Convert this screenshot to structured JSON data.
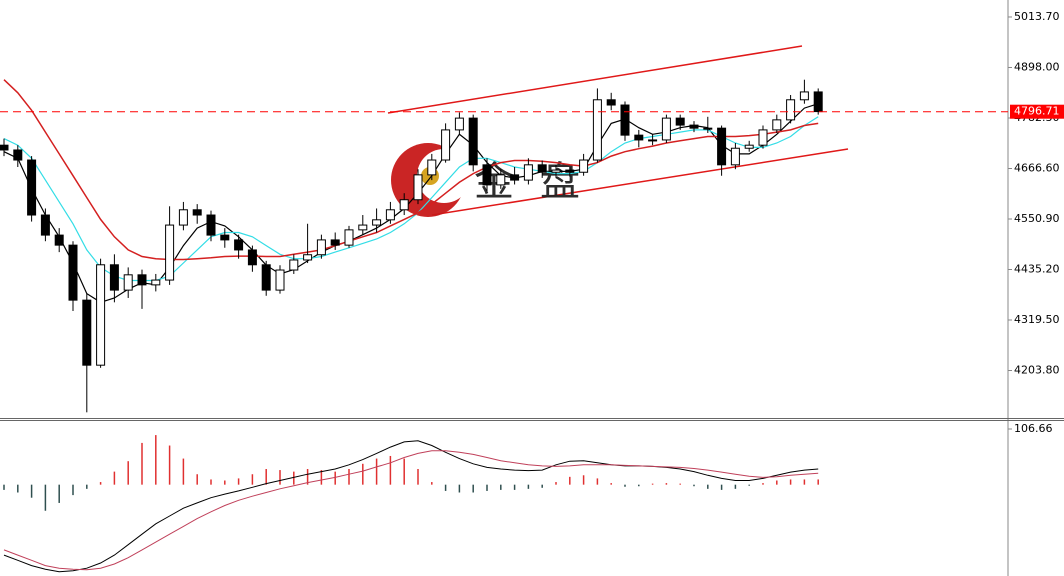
{
  "chart_data": {
    "type": "candlestick",
    "watermark": "金盘",
    "open": [
      4720,
      4709,
      4686,
      4560,
      4514,
      4491,
      4365,
      4216,
      4446,
      4388,
      4423,
      4400,
      4411,
      4537,
      4572,
      4560,
      4514,
      4503,
      4480,
      4446,
      4388,
      4434,
      4457,
      4469,
      4503,
      4491,
      4526,
      4537,
      4549,
      4572,
      4595,
      4652,
      4686,
      4755,
      4782,
      4675,
      4629,
      4652,
      4640,
      4675,
      4658,
      4663,
      4658,
      4686,
      4824,
      4812,
      4743,
      4732,
      4732,
      4782,
      4766,
      4759,
      4759,
      4675,
      4713,
      4720,
      4755,
      4778,
      4824,
      4842
    ],
    "high": [
      4735,
      4720,
      4695,
      4575,
      4530,
      4500,
      4380,
      4460,
      4470,
      4440,
      4435,
      4425,
      4580,
      4590,
      4585,
      4570,
      4530,
      4515,
      4490,
      4455,
      4445,
      4470,
      4540,
      4515,
      4520,
      4535,
      4560,
      4575,
      4590,
      4610,
      4665,
      4700,
      4770,
      4795,
      4790,
      4690,
      4665,
      4670,
      4690,
      4685,
      4675,
      4670,
      4700,
      4850,
      4840,
      4820,
      4755,
      4745,
      4790,
      4790,
      4775,
      4785,
      4765,
      4725,
      4730,
      4765,
      4790,
      4835,
      4870,
      4850
    ],
    "low": [
      4695,
      4670,
      4545,
      4500,
      4475,
      4340,
      4108,
      4210,
      4360,
      4370,
      4345,
      4385,
      4400,
      4525,
      4540,
      4500,
      4485,
      4460,
      4430,
      4375,
      4380,
      4425,
      4450,
      4460,
      4480,
      4485,
      4515,
      4520,
      4540,
      4560,
      4585,
      4640,
      4680,
      4745,
      4660,
      4615,
      4620,
      4630,
      4630,
      4645,
      4645,
      4648,
      4650,
      4680,
      4800,
      4730,
      4715,
      4720,
      4725,
      4755,
      4750,
      4748,
      4650,
      4665,
      4705,
      4712,
      4748,
      4770,
      4815,
      4790
    ],
    "close": [
      4709,
      4686,
      4560,
      4514,
      4491,
      4365,
      4216,
      4446,
      4388,
      4423,
      4400,
      4411,
      4537,
      4572,
      4560,
      4514,
      4503,
      4480,
      4446,
      4388,
      4434,
      4457,
      4469,
      4503,
      4491,
      4526,
      4537,
      4549,
      4572,
      4595,
      4652,
      4686,
      4755,
      4782,
      4675,
      4629,
      4652,
      4640,
      4675,
      4658,
      4663,
      4658,
      4686,
      4824,
      4812,
      4743,
      4732,
      4732,
      4782,
      4766,
      4759,
      4759,
      4675,
      4713,
      4720,
      4755,
      4778,
      4824,
      4842,
      4797
    ],
    "moving_averages": [
      {
        "color": "#000000",
        "values": [
          4705,
          4690,
          4620,
          4560,
          4510,
          4450,
          4380,
          4360,
          4370,
          4390,
          4405,
          4400,
          4440,
          4490,
          4530,
          4545,
          4535,
          4510,
          4480,
          4445,
          4425,
          4435,
          4455,
          4475,
          4490,
          4500,
          4515,
          4530,
          4550,
          4575,
          4610,
          4650,
          4700,
          4745,
          4720,
          4680,
          4650,
          4645,
          4650,
          4660,
          4660,
          4660,
          4665,
          4720,
          4770,
          4780,
          4760,
          4745,
          4750,
          4760,
          4765,
          4760,
          4720,
          4700,
          4700,
          4720,
          4745,
          4775,
          4805,
          4815
        ]
      },
      {
        "color": "#33dde6",
        "values": [
          4735,
          4720,
          4690,
          4640,
          4590,
          4540,
          4480,
          4440,
          4420,
          4410,
          4410,
          4410,
          4420,
          4450,
          4480,
          4510,
          4520,
          4520,
          4510,
          4490,
          4470,
          4460,
          4460,
          4465,
          4475,
          4485,
          4495,
          4505,
          4520,
          4540,
          4565,
          4600,
          4635,
          4670,
          4690,
          4690,
          4680,
          4670,
          4665,
          4660,
          4655,
          4655,
          4660,
          4680,
          4705,
          4725,
          4735,
          4740,
          4745,
          4750,
          4755,
          4755,
          4740,
          4725,
          4715,
          4715,
          4725,
          4740,
          4765,
          4785
        ]
      },
      {
        "color": "#d42020",
        "values": [
          4870,
          4840,
          4800,
          4750,
          4700,
          4650,
          4600,
          4550,
          4510,
          4480,
          4465,
          4460,
          4458,
          4458,
          4460,
          4462,
          4465,
          4466,
          4466,
          4465,
          4465,
          4470,
          4475,
          4480,
          4490,
          4500,
          4510,
          4520,
          4535,
          4550,
          4565,
          4585,
          4610,
          4635,
          4655,
          4670,
          4680,
          4685,
          4685,
          4683,
          4680,
          4675,
          4672,
          4680,
          4695,
          4705,
          4712,
          4718,
          4725,
          4730,
          4735,
          4740,
          4740,
          4740,
          4742,
          4745,
          4750,
          4755,
          4765,
          4770
        ]
      }
    ],
    "ylim": [
      4095,
      5052.6
    ],
    "yticks": [
      {
        "value": 5013.7,
        "label": "5013.70"
      },
      {
        "value": 4898.0,
        "label": "4898.00"
      },
      {
        "value": 4782.3,
        "label": "4782.30"
      },
      {
        "value": 4666.6,
        "label": "4666.60"
      },
      {
        "value": 4550.9,
        "label": "4550.90"
      },
      {
        "value": 4435.2,
        "label": "4435.20"
      },
      {
        "value": 4319.5,
        "label": "4319.50"
      },
      {
        "value": 4203.8,
        "label": "4203.80"
      }
    ],
    "last_price": 4796.71,
    "last_price_color": "#ff0000",
    "indicator": {
      "ylim": [
        -175,
        122
      ],
      "yticks": [
        106.66
      ],
      "histogram": [
        -10,
        -15,
        -25,
        -50,
        -35,
        -20,
        -8,
        5,
        25,
        45,
        80,
        95,
        75,
        50,
        20,
        10,
        8,
        12,
        20,
        30,
        28,
        25,
        30,
        28,
        25,
        30,
        40,
        50,
        55,
        50,
        30,
        5,
        -12,
        -15,
        -15,
        -12,
        -10,
        -10,
        -8,
        -6,
        5,
        15,
        18,
        12,
        3,
        -4,
        -3,
        2,
        3,
        2,
        -3,
        -8,
        -10,
        -8,
        -2,
        3,
        8,
        10,
        10,
        10
      ],
      "positive_color": "#e03030",
      "negative_color": "#2f4f4f",
      "lines": [
        {
          "color": "#000000",
          "values": [
            -135,
            -145,
            -155,
            -162,
            -167,
            -165,
            -160,
            -150,
            -135,
            -115,
            -95,
            -75,
            -60,
            -45,
            -35,
            -25,
            -18,
            -12,
            -5,
            2,
            8,
            14,
            20,
            25,
            30,
            38,
            48,
            60,
            72,
            82,
            84,
            75,
            62,
            50,
            40,
            33,
            30,
            28,
            27,
            28,
            38,
            45,
            46,
            42,
            38,
            36,
            36,
            35,
            33,
            30,
            25,
            18,
            12,
            8,
            8,
            12,
            18,
            24,
            28,
            30
          ]
        },
        {
          "color": "#c0405a",
          "values": [
            -125,
            -135,
            -145,
            -155,
            -160,
            -162,
            -163,
            -160,
            -152,
            -140,
            -125,
            -110,
            -95,
            -80,
            -65,
            -52,
            -40,
            -30,
            -22,
            -15,
            -8,
            -2,
            4,
            9,
            14,
            20,
            26,
            34,
            42,
            52,
            60,
            65,
            65,
            62,
            58,
            52,
            46,
            42,
            38,
            36,
            35,
            36,
            38,
            38,
            38,
            37,
            36,
            35,
            34,
            33,
            31,
            28,
            24,
            20,
            16,
            14,
            15,
            18,
            20,
            22
          ]
        }
      ]
    }
  }
}
